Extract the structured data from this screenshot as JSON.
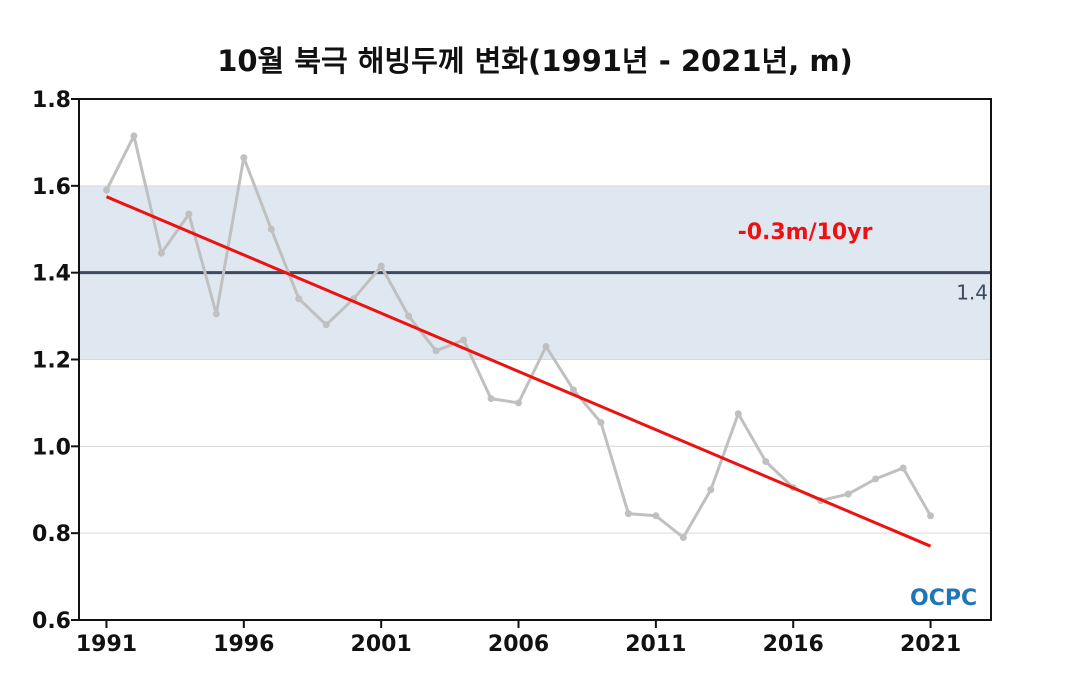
{
  "chart_data": {
    "type": "line",
    "title": "10월 북극 해빙두께 변화(1991년 - 2021년, m)",
    "xlabel": "",
    "ylabel": "",
    "x": [
      1991,
      1992,
      1993,
      1994,
      1995,
      1996,
      1997,
      1998,
      1999,
      2000,
      2001,
      2002,
      2003,
      2004,
      2005,
      2006,
      2007,
      2008,
      2009,
      2010,
      2011,
      2012,
      2013,
      2014,
      2015,
      2016,
      2017,
      2018,
      2019,
      2020,
      2021
    ],
    "series": [
      {
        "values": [
          1.59,
          1.715,
          1.445,
          1.535,
          1.305,
          1.665,
          1.5,
          1.34,
          1.28,
          1.34,
          1.415,
          1.3,
          1.22,
          1.245,
          1.11,
          1.1,
          1.23,
          1.13,
          1.055,
          0.845,
          0.84,
          0.79,
          0.9,
          1.075,
          0.965,
          0.905,
          0.875,
          0.89,
          0.925,
          0.95,
          0.84
        ]
      }
    ],
    "trend": {
      "x": [
        1991,
        2021
      ],
      "y": [
        1.575,
        0.77
      ],
      "label": "-0.3m/10yr"
    },
    "reference": {
      "value": 1.4,
      "label": "1.4",
      "band": [
        1.2,
        1.6
      ]
    },
    "xlim": [
      1990,
      2023.2
    ],
    "ylim": [
      0.6,
      1.8
    ],
    "xticks": [
      1991,
      1996,
      2001,
      2006,
      2011,
      2016,
      2021
    ],
    "yticks": [
      "0.6",
      "0.8",
      "1.0",
      "1.2",
      "1.4",
      "1.6",
      "1.8"
    ],
    "grid": true,
    "colors": {
      "series": "#c0c0c0",
      "trend": "#ee1111",
      "reference": "#3e4a5c",
      "band": "#dfe8f1",
      "grid": "#d9d9d9"
    }
  },
  "logo": {
    "text": "OCPC"
  }
}
